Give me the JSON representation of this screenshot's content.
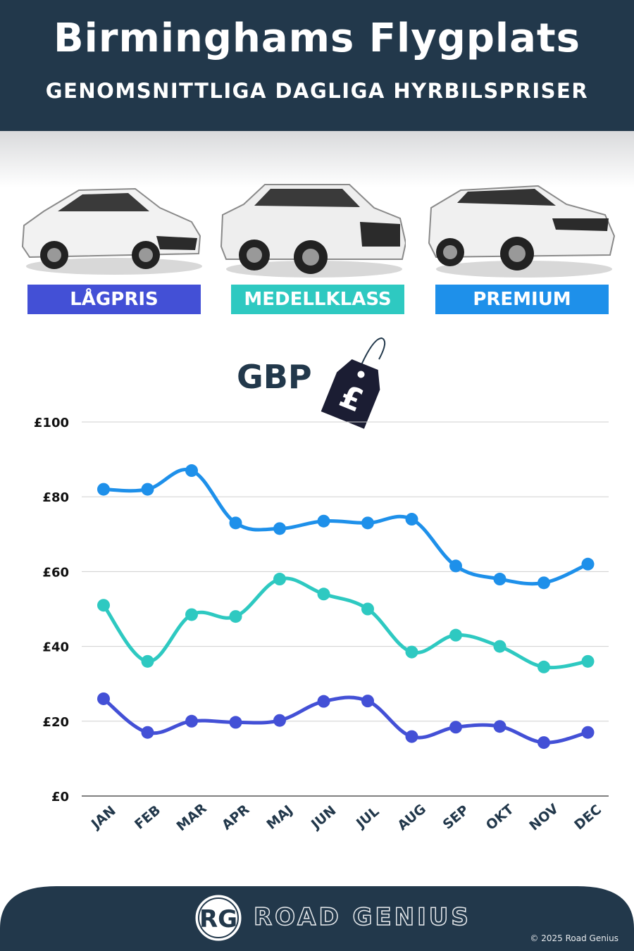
{
  "header": {
    "title": "Birminghams Flygplats",
    "subtitle": "GENOMSNITTLIGA DAGLIGA HYRBILSPRISER"
  },
  "categories": [
    {
      "label": "LÅGPRIS",
      "color": "#4350d6"
    },
    {
      "label": "MEDELLKLASS",
      "color": "#2ec9c1"
    },
    {
      "label": "PREMIUM",
      "color": "#1e90ea"
    }
  ],
  "currency": {
    "label": "GBP",
    "tag_symbol": "£"
  },
  "chart_data": {
    "type": "line",
    "categories": [
      "JAN",
      "FEB",
      "MAR",
      "APR",
      "MAJ",
      "JUN",
      "JUL",
      "AUG",
      "SEP",
      "OKT",
      "NOV",
      "DEC"
    ],
    "series": [
      {
        "name": "PREMIUM",
        "color": "#1e90ea",
        "values": [
          82,
          82,
          87,
          73,
          71.5,
          73.5,
          73,
          74,
          61.5,
          58,
          57,
          62
        ]
      },
      {
        "name": "MEDELLKLASS",
        "color": "#2ec9c1",
        "values": [
          51,
          36,
          48.5,
          48,
          58,
          54,
          50,
          38.5,
          43,
          40,
          34.5,
          36
        ]
      },
      {
        "name": "LÅGPRIS",
        "color": "#4350d6",
        "values": [
          26,
          17,
          20,
          19.7,
          20.2,
          25.3,
          25.4,
          15.9,
          18.4,
          18.6,
          14.3,
          17
        ]
      }
    ],
    "yticks": [
      "£0",
      "£20",
      "£40",
      "£60",
      "£80",
      "£100"
    ],
    "ylim": [
      0,
      100
    ],
    "grid": true
  },
  "footer": {
    "brand_initials": "RG",
    "brand": "ROAD GENIUS",
    "copyright": "© 2025 Road Genius"
  }
}
